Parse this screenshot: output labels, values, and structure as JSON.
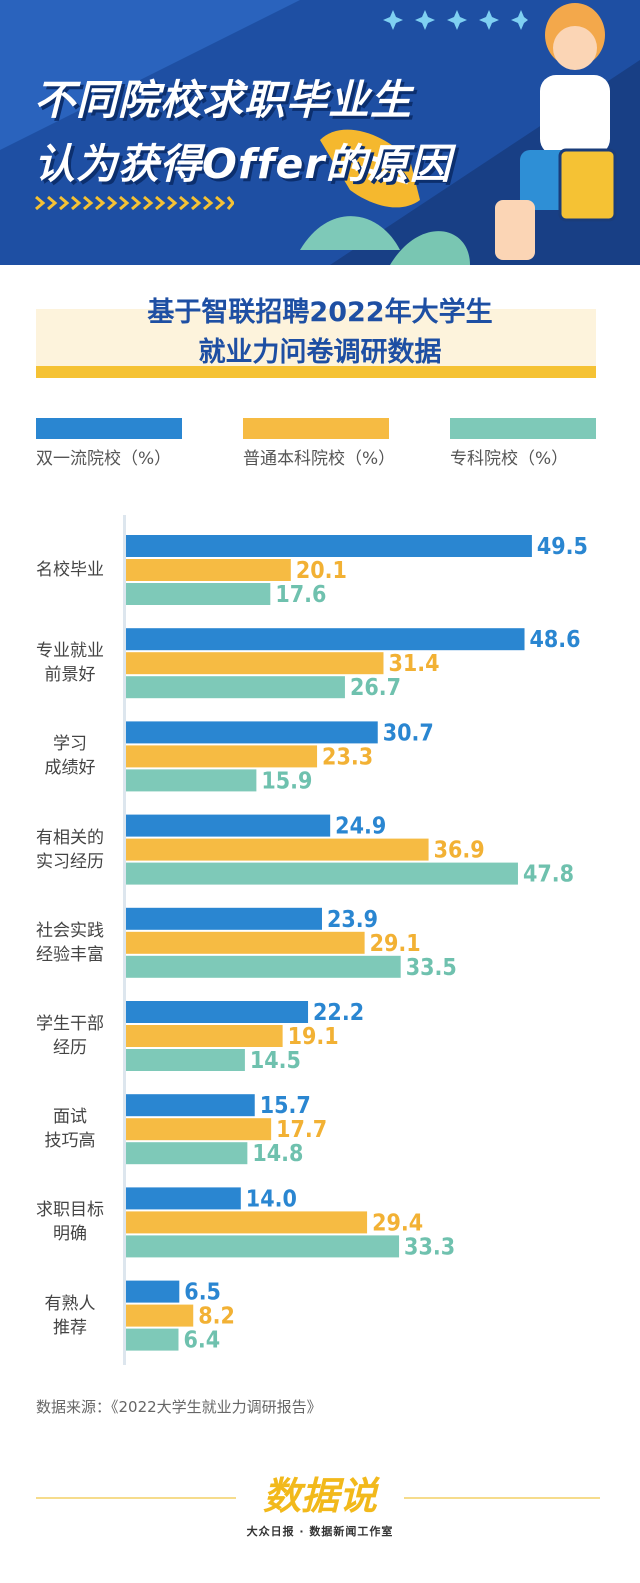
{
  "header": {
    "title_line1": "不同院校求职毕业生",
    "title_line2": "认为获得Offer的原因"
  },
  "subtitle": {
    "line1": "基于智联招聘2022年大学生",
    "line2": "就业力问卷调研数据"
  },
  "colors": {
    "blue": "#2a86d1",
    "yellow": "#f6bb43",
    "teal": "#7ec9b8",
    "axis": "#dde6ee",
    "banner": "#1e4fa3"
  },
  "chart_data": {
    "type": "bar",
    "orientation": "horizontal",
    "categories": [
      [
        "名校毕业"
      ],
      [
        "专业就业",
        "前景好"
      ],
      [
        "学习",
        "成绩好"
      ],
      [
        "有相关的",
        "实习经历"
      ],
      [
        "社会实践",
        "经验丰富"
      ],
      [
        "学生干部",
        "经历"
      ],
      [
        "面试",
        "技巧高"
      ],
      [
        "求职目标",
        "明确"
      ],
      [
        "有熟人",
        "推荐"
      ]
    ],
    "series": [
      {
        "name": "双一流院校（%）",
        "color": "#2a86d1",
        "labelColor": "#2a86d1",
        "values": [
          49.5,
          48.6,
          30.7,
          24.9,
          23.9,
          22.2,
          15.7,
          14.0,
          6.5
        ],
        "labels": [
          "49.5",
          "48.6",
          "30.7",
          "24.9",
          "23.9",
          "22.2",
          "15.7",
          "14.0",
          "6.5"
        ]
      },
      {
        "name": "普通本科院校（%）",
        "color": "#f6bb43",
        "labelColor": "#f2b134",
        "values": [
          20.1,
          31.4,
          23.3,
          36.9,
          29.1,
          19.1,
          17.7,
          29.4,
          8.2
        ],
        "labels": [
          "20.1",
          "31.4",
          "23.3",
          "36.9",
          "29.1",
          "19.1",
          "17.7",
          "29.4",
          "8.2"
        ]
      },
      {
        "name": "专科院校（%）",
        "color": "#7ec9b8",
        "labelColor": "#6fc1ae",
        "values": [
          17.6,
          26.7,
          15.9,
          47.8,
          33.5,
          14.5,
          14.8,
          33.3,
          6.4
        ],
        "labels": [
          "17.6",
          "26.7",
          "15.9",
          "47.8",
          "33.5",
          "14.5",
          "14.8",
          "33.3",
          "6.4"
        ]
      }
    ],
    "xlim": [
      0,
      50
    ],
    "unit": "%"
  },
  "legend": [
    {
      "label": "双一流院校（%）",
      "color": "#2a86d1"
    },
    {
      "label": "普通本科院校（%）",
      "color": "#f6bb43"
    },
    {
      "label": "专科院校（%）",
      "color": "#7ec9b8"
    }
  ],
  "footer": {
    "source": "数据来源：《2022大学生就业力调研报告》",
    "logo": "数据说",
    "org": "大众日报 · 数据新闻工作室"
  }
}
